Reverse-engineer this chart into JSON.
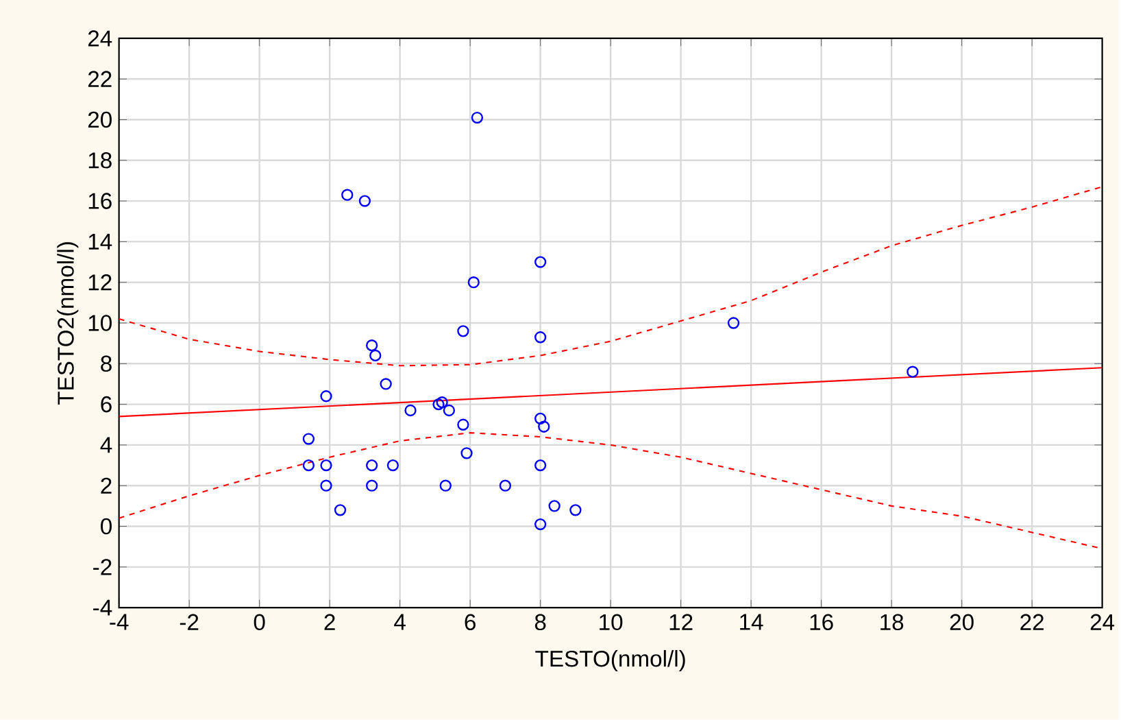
{
  "chart_data": {
    "type": "scatter",
    "xlabel": "TESTO(nmol/l)",
    "ylabel": "TESTO2(nmol/l)",
    "xlim": [
      -4,
      24
    ],
    "ylim": [
      -4,
      24
    ],
    "xticks": [
      -4,
      -2,
      0,
      2,
      4,
      6,
      8,
      10,
      12,
      14,
      16,
      18,
      20,
      22,
      24
    ],
    "yticks": [
      -4,
      -2,
      0,
      2,
      4,
      6,
      8,
      10,
      12,
      14,
      16,
      18,
      20,
      22,
      24
    ],
    "grid": true,
    "marker": "circle",
    "series": [
      {
        "color": "#0000ff",
        "x": [
          6.2,
          2.5,
          3.0,
          8.0,
          6.1,
          5.8,
          8.0,
          13.5,
          3.2,
          3.3,
          3.6,
          1.9,
          18.6,
          4.3,
          5.1,
          5.2,
          5.4,
          5.8,
          8.0,
          8.1,
          1.4,
          5.9,
          1.4,
          1.9,
          3.2,
          3.8,
          8.0,
          1.9,
          3.2,
          5.3,
          7.0,
          2.3,
          8.4,
          9.0,
          8.0
        ],
        "values": [
          20.1,
          16.3,
          16.0,
          13.0,
          12.0,
          9.6,
          9.3,
          10.0,
          8.9,
          8.4,
          7.0,
          6.4,
          7.6,
          5.7,
          6.0,
          6.1,
          5.7,
          5.0,
          5.3,
          4.9,
          4.3,
          3.6,
          3.0,
          3.0,
          3.0,
          3.0,
          3.0,
          2.0,
          2.0,
          2.0,
          2.0,
          0.8,
          1.0,
          0.8,
          0.1
        ]
      },
      {
        "type": "line",
        "color": "#ff0000",
        "marker": "none",
        "line_style": "solid",
        "x": [
          -4,
          24
        ],
        "values": [
          5.4,
          7.8
        ]
      },
      {
        "type": "line",
        "color": "#ff0000",
        "marker": "none",
        "line_style": "dashed",
        "x": [
          -4,
          -2,
          0,
          2,
          4,
          6,
          8,
          10,
          12,
          14,
          16,
          18,
          20,
          22,
          24
        ],
        "values": [
          10.2,
          9.2,
          8.6,
          8.2,
          7.9,
          7.95,
          8.4,
          9.1,
          10.1,
          11.1,
          12.5,
          13.8,
          14.8,
          15.7,
          16.7
        ]
      },
      {
        "type": "line",
        "color": "#ff0000",
        "marker": "none",
        "line_style": "dashed",
        "x": [
          -4,
          -2,
          0,
          2,
          4,
          6,
          8,
          10,
          12,
          14,
          16,
          18,
          20,
          22,
          24
        ],
        "values": [
          0.4,
          1.5,
          2.5,
          3.4,
          4.2,
          4.6,
          4.4,
          4.0,
          3.4,
          2.6,
          1.8,
          1.0,
          0.5,
          -0.3,
          -1.1
        ]
      }
    ]
  }
}
